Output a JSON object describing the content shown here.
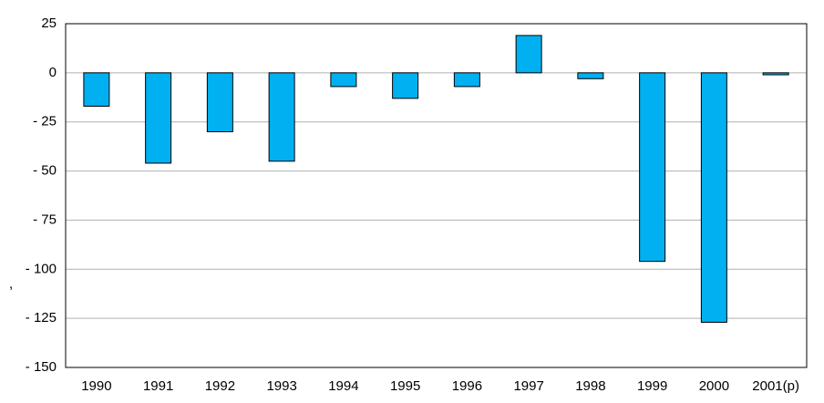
{
  "chart_data": {
    "type": "bar",
    "annotation": ",",
    "categories": [
      "1990",
      "1991",
      "1992",
      "1993",
      "1994",
      "1995",
      "1996",
      "1997",
      "1998",
      "1999",
      "2000",
      "2001(p)"
    ],
    "values": [
      -17,
      -46,
      -30,
      -45,
      -7,
      -13,
      -7,
      19,
      -3,
      -96,
      -127,
      -1
    ],
    "color": "#00b0f0",
    "ylim": [
      -150,
      25
    ],
    "yticks": [
      25,
      0,
      {
        "value": -25,
        "label": "- 25"
      },
      {
        "value": -50,
        "label": "- 50"
      },
      {
        "value": -75,
        "label": "- 75"
      },
      {
        "value": -100,
        "label": "- 100"
      },
      {
        "value": -125,
        "label": "- 125"
      },
      {
        "value": -150,
        "label": "- 150"
      }
    ],
    "grid": true
  }
}
